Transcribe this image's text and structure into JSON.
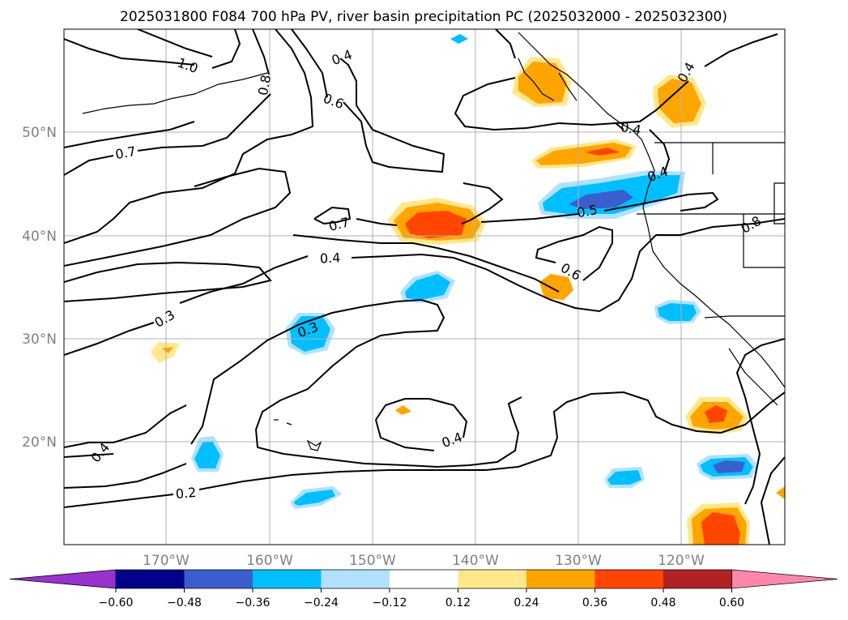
{
  "title": "2025031800 F084 700 hPa PV, river basin precipitation PC (2025032000 - 2025032300)",
  "lat_labels": [
    "50°N",
    "40°N",
    "30°N",
    "20°N"
  ],
  "lon_labels": [
    "170°W",
    "160°W",
    "150°W",
    "140°W",
    "130°W",
    "120°W"
  ],
  "colorbar": {
    "ticks": [
      "−0.60",
      "−0.48",
      "−0.36",
      "−0.24",
      "−0.12",
      "0.12",
      "0.24",
      "0.36",
      "0.48",
      "0.60"
    ],
    "colors": [
      "#9932cc",
      "#00008b",
      "#3a5fcd",
      "#00bfff",
      "#b0e2ff",
      "#ffffff",
      "#ffe88c",
      "#ffa500",
      "#ff4500",
      "#b22222",
      "#ff88aa"
    ]
  },
  "contour_labels": [
    "1.0",
    "0.8",
    "0.4",
    "0.6",
    "0.7",
    "0.4",
    "0.7",
    "0.4",
    "0.5",
    "0.4",
    "0.6",
    "0.3",
    "0.3",
    "0.4",
    "0.4",
    "0.2",
    "0.4",
    "0.8",
    "0.4"
  ],
  "fill_colors": {
    "pos_low": "#ffe88c",
    "pos_mid": "#ffa500",
    "pos_high": "#ff4500",
    "neg_low": "#b0e2ff",
    "neg_mid": "#00bfff",
    "neg_high": "#3a5fcd"
  }
}
